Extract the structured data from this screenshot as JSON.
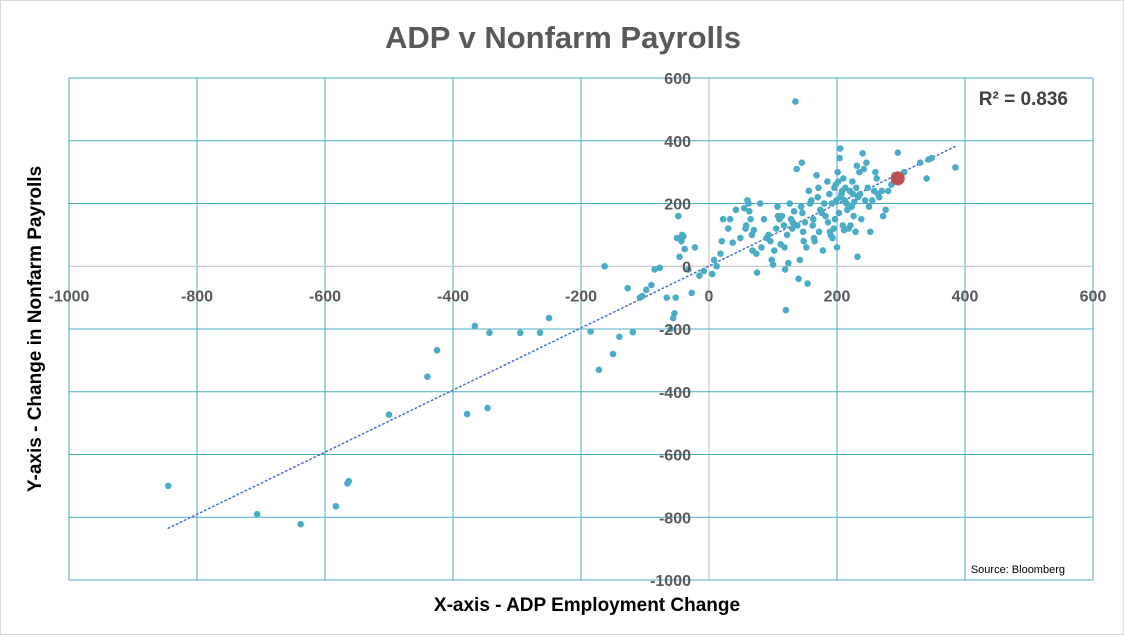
{
  "chart_data": {
    "type": "scatter",
    "title": "ADP v Nonfarm Payrolls",
    "xlabel": "X-axis - ADP Employment Change",
    "ylabel": "Y-axis - Change in Nonfarm Payrolls",
    "xlim": [
      -1000,
      600
    ],
    "ylim": [
      -1000,
      600
    ],
    "xticks": [
      "-1000",
      "-800",
      "-600",
      "-400",
      "-200",
      "0",
      "200",
      "400",
      "600"
    ],
    "yticks": [
      "600",
      "400",
      "200",
      "0",
      "-200",
      "-400",
      "-600",
      "-800",
      "-1000"
    ],
    "annotation": "R² = 0.836",
    "source": "Source: Bloomberg",
    "grid": true,
    "colors": {
      "points": "#4bacc6",
      "highlight": "#c0504d",
      "trendline": "#4472c4",
      "grid": "#4bacc6",
      "zero_axis": "#bfbfbf"
    },
    "trendline": {
      "x": [
        -845,
        385
      ],
      "y": [
        -835,
        382
      ]
    },
    "highlight": {
      "x": 295,
      "y": 280
    },
    "points": [
      [
        -845,
        -700
      ],
      [
        -706,
        -790
      ],
      [
        -638,
        -822
      ],
      [
        -583,
        -765
      ],
      [
        -565,
        -692
      ],
      [
        -563,
        -685
      ],
      [
        -500,
        -473
      ],
      [
        -440,
        -352
      ],
      [
        -425,
        -268
      ],
      [
        -378,
        -471
      ],
      [
        -366,
        -190
      ],
      [
        -346,
        -452
      ],
      [
        -343,
        -212
      ],
      [
        -295,
        -212
      ],
      [
        -264,
        -212
      ],
      [
        -250,
        -165
      ],
      [
        -185,
        -208
      ],
      [
        -172,
        -330
      ],
      [
        -163,
        0
      ],
      [
        -150,
        -280
      ],
      [
        -140,
        -225
      ],
      [
        -127,
        -70
      ],
      [
        -119,
        -210
      ],
      [
        -108,
        -100
      ],
      [
        -104,
        -95
      ],
      [
        -98,
        -75
      ],
      [
        -90,
        -60
      ],
      [
        -85,
        -10
      ],
      [
        -77,
        -5
      ],
      [
        -66,
        -100
      ],
      [
        -60,
        -200
      ],
      [
        -56,
        -165
      ],
      [
        -54,
        -150
      ],
      [
        -52,
        -100
      ],
      [
        -50,
        90
      ],
      [
        -48,
        160
      ],
      [
        -46,
        30
      ],
      [
        -43,
        80
      ],
      [
        -42,
        100
      ],
      [
        -40,
        95
      ],
      [
        -38,
        55
      ],
      [
        -32,
        -10
      ],
      [
        -27,
        -85
      ],
      [
        -22,
        60
      ],
      [
        -15,
        -30
      ],
      [
        -8,
        -15
      ],
      [
        5,
        -25
      ],
      [
        8,
        20
      ],
      [
        12,
        0
      ],
      [
        18,
        40
      ],
      [
        20,
        80
      ],
      [
        22,
        150
      ],
      [
        30,
        120
      ],
      [
        33,
        150
      ],
      [
        37,
        75
      ],
      [
        42,
        180
      ],
      [
        49,
        90
      ],
      [
        55,
        185
      ],
      [
        57,
        120
      ],
      [
        58,
        130
      ],
      [
        60,
        210
      ],
      [
        62,
        200
      ],
      [
        63,
        175
      ],
      [
        65,
        150
      ],
      [
        67,
        100
      ],
      [
        68,
        50
      ],
      [
        70,
        115
      ],
      [
        74,
        40
      ],
      [
        75,
        -20
      ],
      [
        80,
        200
      ],
      [
        82,
        60
      ],
      [
        86,
        150
      ],
      [
        90,
        90
      ],
      [
        93,
        100
      ],
      [
        96,
        80
      ],
      [
        98,
        20
      ],
      [
        100,
        5
      ],
      [
        102,
        50
      ],
      [
        105,
        120
      ],
      [
        107,
        190
      ],
      [
        108,
        160
      ],
      [
        110,
        150
      ],
      [
        112,
        70
      ],
      [
        114,
        160
      ],
      [
        117,
        130
      ],
      [
        118,
        60
      ],
      [
        119,
        -10
      ],
      [
        120,
        -140
      ],
      [
        122,
        100
      ],
      [
        124,
        10
      ],
      [
        126,
        200
      ],
      [
        128,
        150
      ],
      [
        130,
        120
      ],
      [
        131,
        140
      ],
      [
        133,
        175
      ],
      [
        135,
        525
      ],
      [
        137,
        310
      ],
      [
        138,
        130
      ],
      [
        140,
        -40
      ],
      [
        142,
        20
      ],
      [
        144,
        190
      ],
      [
        145,
        330
      ],
      [
        146,
        170
      ],
      [
        147,
        110
      ],
      [
        148,
        80
      ],
      [
        150,
        140
      ],
      [
        152,
        60
      ],
      [
        154,
        -55
      ],
      [
        156,
        240
      ],
      [
        158,
        200
      ],
      [
        160,
        210
      ],
      [
        162,
        130
      ],
      [
        163,
        150
      ],
      [
        164,
        90
      ],
      [
        165,
        80
      ],
      [
        168,
        290
      ],
      [
        170,
        220
      ],
      [
        171,
        250
      ],
      [
        172,
        110
      ],
      [
        174,
        180
      ],
      [
        176,
        170
      ],
      [
        178,
        50
      ],
      [
        180,
        200
      ],
      [
        182,
        160
      ],
      [
        185,
        270
      ],
      [
        186,
        140
      ],
      [
        188,
        230
      ],
      [
        189,
        110
      ],
      [
        190,
        100
      ],
      [
        192,
        200
      ],
      [
        193,
        90
      ],
      [
        195,
        120
      ],
      [
        196,
        250
      ],
      [
        197,
        150
      ],
      [
        198,
        260
      ],
      [
        199,
        210
      ],
      [
        200,
        60
      ],
      [
        201,
        300
      ],
      [
        202,
        270
      ],
      [
        203,
        170
      ],
      [
        204,
        345
      ],
      [
        205,
        375
      ],
      [
        206,
        220
      ],
      [
        207,
        230
      ],
      [
        208,
        240
      ],
      [
        209,
        130
      ],
      [
        210,
        280
      ],
      [
        211,
        115
      ],
      [
        212,
        210
      ],
      [
        213,
        250
      ],
      [
        215,
        200
      ],
      [
        216,
        180
      ],
      [
        218,
        120
      ],
      [
        220,
        240
      ],
      [
        221,
        130
      ],
      [
        223,
        190
      ],
      [
        224,
        270
      ],
      [
        225,
        230
      ],
      [
        226,
        160
      ],
      [
        227,
        205
      ],
      [
        229,
        110
      ],
      [
        230,
        250
      ],
      [
        231,
        320
      ],
      [
        232,
        30
      ],
      [
        233,
        220
      ],
      [
        235,
        300
      ],
      [
        236,
        230
      ],
      [
        238,
        150
      ],
      [
        240,
        360
      ],
      [
        242,
        310
      ],
      [
        244,
        210
      ],
      [
        246,
        330
      ],
      [
        248,
        250
      ],
      [
        250,
        190
      ],
      [
        252,
        110
      ],
      [
        255,
        210
      ],
      [
        258,
        240
      ],
      [
        260,
        300
      ],
      [
        262,
        280
      ],
      [
        264,
        230
      ],
      [
        266,
        220
      ],
      [
        270,
        240
      ],
      [
        272,
        160
      ],
      [
        276,
        180
      ],
      [
        280,
        240
      ],
      [
        285,
        260
      ],
      [
        290,
        290
      ],
      [
        295,
        362
      ],
      [
        305,
        300
      ],
      [
        330,
        330
      ],
      [
        340,
        280
      ],
      [
        343,
        340
      ],
      [
        348,
        345
      ],
      [
        385,
        315
      ]
    ]
  }
}
